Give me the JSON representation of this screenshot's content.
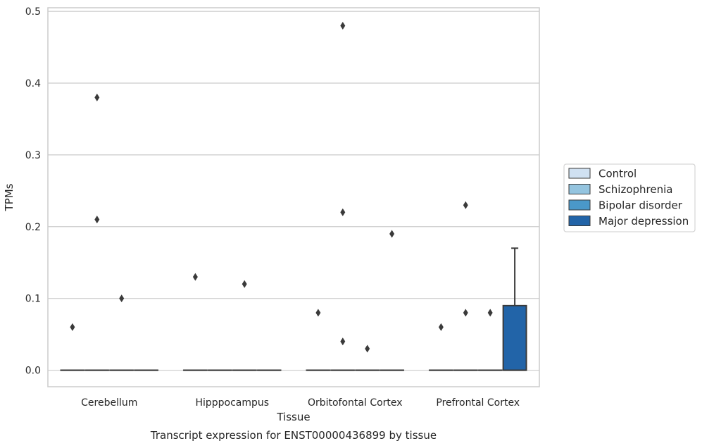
{
  "chart_data": {
    "type": "box",
    "title": "Transcript expression for ENST00000436899 by tissue",
    "xlabel": "Tissue",
    "ylabel": "TPMs",
    "ylim": [
      -0.023,
      0.505
    ],
    "yticks": [
      0.0,
      0.1,
      0.2,
      0.3,
      0.4,
      0.5
    ],
    "ytick_labels": [
      "0.0",
      "0.1",
      "0.2",
      "0.3",
      "0.4",
      "0.5"
    ],
    "grid": "horizontal",
    "legend_position": "right",
    "categories": [
      "Cerebellum",
      "Hipppocampus",
      "Orbitofontal Cortex",
      "Prefrontal Cortex"
    ],
    "series": [
      {
        "name": "Control",
        "color": "#d0e1f2",
        "boxes": [
          {
            "q1": 0,
            "median": 0,
            "q3": 0,
            "whisker_low": 0,
            "whisker_high": 0,
            "outliers": [
              0.06
            ]
          },
          {
            "q1": 0,
            "median": 0,
            "q3": 0,
            "whisker_low": 0,
            "whisker_high": 0,
            "outliers": [
              0.13
            ]
          },
          {
            "q1": 0,
            "median": 0,
            "q3": 0,
            "whisker_low": 0,
            "whisker_high": 0,
            "outliers": [
              0.08
            ]
          },
          {
            "q1": 0,
            "median": 0,
            "q3": 0,
            "whisker_low": 0,
            "whisker_high": 0,
            "outliers": [
              0.06
            ]
          }
        ]
      },
      {
        "name": "Schizophrenia",
        "color": "#94c4df",
        "boxes": [
          {
            "q1": 0,
            "median": 0,
            "q3": 0,
            "whisker_low": 0,
            "whisker_high": 0,
            "outliers": [
              0.38,
              0.21
            ]
          },
          {
            "q1": 0,
            "median": 0,
            "q3": 0,
            "whisker_low": 0,
            "whisker_high": 0,
            "outliers": []
          },
          {
            "q1": 0,
            "median": 0,
            "q3": 0,
            "whisker_low": 0,
            "whisker_high": 0,
            "outliers": [
              0.48,
              0.22,
              0.04
            ]
          },
          {
            "q1": 0,
            "median": 0,
            "q3": 0,
            "whisker_low": 0,
            "whisker_high": 0,
            "outliers": [
              0.23,
              0.08
            ]
          }
        ]
      },
      {
        "name": "Bipolar disorder",
        "color": "#4a98c9",
        "boxes": [
          {
            "q1": 0,
            "median": 0,
            "q3": 0,
            "whisker_low": 0,
            "whisker_high": 0,
            "outliers": [
              0.1
            ]
          },
          {
            "q1": 0,
            "median": 0,
            "q3": 0,
            "whisker_low": 0,
            "whisker_high": 0,
            "outliers": [
              0.12
            ]
          },
          {
            "q1": 0,
            "median": 0,
            "q3": 0,
            "whisker_low": 0,
            "whisker_high": 0,
            "outliers": [
              0.03
            ]
          },
          {
            "q1": 0,
            "median": 0,
            "q3": 0,
            "whisker_low": 0,
            "whisker_high": 0,
            "outliers": [
              0.08
            ]
          }
        ]
      },
      {
        "name": "Major depression",
        "color": "#2264a8",
        "boxes": [
          {
            "q1": 0,
            "median": 0,
            "q3": 0,
            "whisker_low": 0,
            "whisker_high": 0,
            "outliers": []
          },
          {
            "q1": 0,
            "median": 0,
            "q3": 0,
            "whisker_low": 0,
            "whisker_high": 0,
            "outliers": []
          },
          {
            "q1": 0,
            "median": 0,
            "q3": 0,
            "whisker_low": 0,
            "whisker_high": 0,
            "outliers": [
              0.19
            ]
          },
          {
            "q1": 0,
            "median": 0,
            "q3": 0.09,
            "whisker_low": 0,
            "whisker_high": 0.17,
            "outliers": []
          }
        ]
      }
    ]
  }
}
